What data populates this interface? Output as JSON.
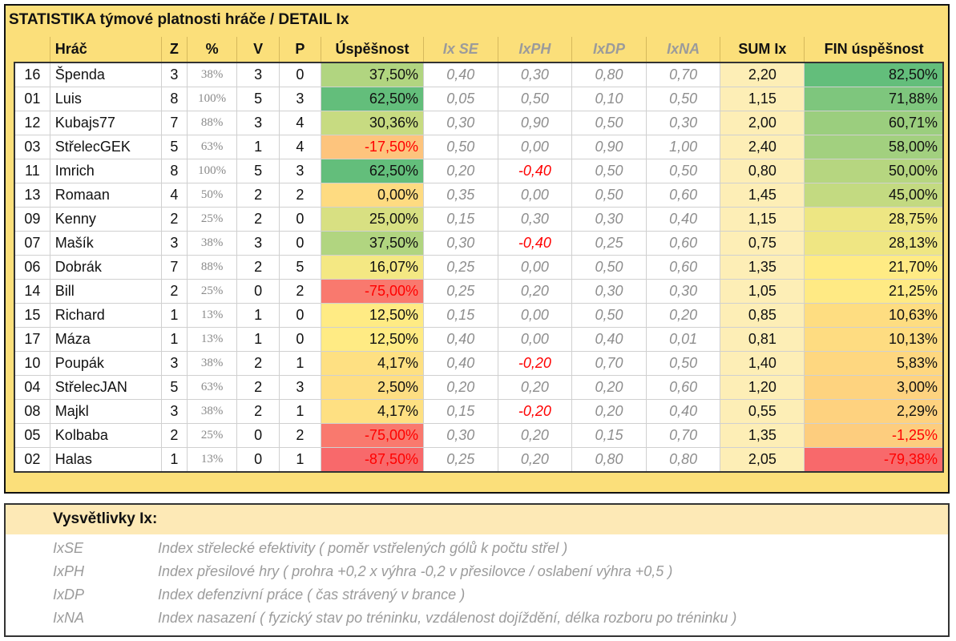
{
  "title": "STATISTIKA týmové platnosti hráče / DETAIL Ix",
  "columns": {
    "nr": "",
    "player": "Hráč",
    "z": "Z",
    "pct": "%",
    "v": "V",
    "p": "P",
    "success": "Úspěšnost",
    "ixse": "Ix SE",
    "ixph": "IxPH",
    "ixdp": "IxDP",
    "ixna": "IxNA",
    "sum": "SUM Ix",
    "fin": "FIN úspěšnost"
  },
  "rows": [
    {
      "nr": "16",
      "player": "Špenda",
      "z": "3",
      "pct": "38%",
      "v": "3",
      "p": "0",
      "success": "37,50%",
      "success_num": 37.5,
      "ixse": "0,40",
      "ixph": "0,30",
      "ixdp": "0,80",
      "ixna": "0,70",
      "sum": "2,20",
      "fin": "82,50%",
      "fin_num": 82.5
    },
    {
      "nr": "01",
      "player": "Luis",
      "z": "8",
      "pct": "100%",
      "v": "5",
      "p": "3",
      "success": "62,50%",
      "success_num": 62.5,
      "ixse": "0,05",
      "ixph": "0,50",
      "ixdp": "0,10",
      "ixna": "0,50",
      "sum": "1,15",
      "fin": "71,88%",
      "fin_num": 71.88
    },
    {
      "nr": "12",
      "player": "Kubajs77",
      "z": "7",
      "pct": "88%",
      "v": "3",
      "p": "4",
      "success": "30,36%",
      "success_num": 30.36,
      "ixse": "0,30",
      "ixph": "0,90",
      "ixdp": "0,50",
      "ixna": "0,30",
      "sum": "2,00",
      "fin": "60,71%",
      "fin_num": 60.71
    },
    {
      "nr": "03",
      "player": "StřelecGEK",
      "z": "5",
      "pct": "63%",
      "v": "1",
      "p": "4",
      "success": "-17,50%",
      "success_num": -17.5,
      "ixse": "0,50",
      "ixph": "0,00",
      "ixdp": "0,90",
      "ixna": "1,00",
      "sum": "2,40",
      "fin": "58,00%",
      "fin_num": 58.0
    },
    {
      "nr": "11",
      "player": "Imrich",
      "z": "8",
      "pct": "100%",
      "v": "5",
      "p": "3",
      "success": "62,50%",
      "success_num": 62.5,
      "ixse": "0,20",
      "ixph": "-0,40",
      "ixdp": "0,50",
      "ixna": "0,50",
      "sum": "0,80",
      "fin": "50,00%",
      "fin_num": 50.0
    },
    {
      "nr": "13",
      "player": "Romaan",
      "z": "4",
      "pct": "50%",
      "v": "2",
      "p": "2",
      "success": "0,00%",
      "success_num": 0.0,
      "ixse": "0,35",
      "ixph": "0,00",
      "ixdp": "0,50",
      "ixna": "0,60",
      "sum": "1,45",
      "fin": "45,00%",
      "fin_num": 45.0
    },
    {
      "nr": "09",
      "player": "Kenny",
      "z": "2",
      "pct": "25%",
      "v": "2",
      "p": "0",
      "success": "25,00%",
      "success_num": 25.0,
      "ixse": "0,15",
      "ixph": "0,30",
      "ixdp": "0,30",
      "ixna": "0,40",
      "sum": "1,15",
      "fin": "28,75%",
      "fin_num": 28.75
    },
    {
      "nr": "07",
      "player": "Mašík",
      "z": "3",
      "pct": "38%",
      "v": "3",
      "p": "0",
      "success": "37,50%",
      "success_num": 37.5,
      "ixse": "0,30",
      "ixph": "-0,40",
      "ixdp": "0,25",
      "ixna": "0,60",
      "sum": "0,75",
      "fin": "28,13%",
      "fin_num": 28.13
    },
    {
      "nr": "06",
      "player": "Dobrák",
      "z": "7",
      "pct": "88%",
      "v": "2",
      "p": "5",
      "success": "16,07%",
      "success_num": 16.07,
      "ixse": "0,25",
      "ixph": "0,00",
      "ixdp": "0,50",
      "ixna": "0,60",
      "sum": "1,35",
      "fin": "21,70%",
      "fin_num": 21.7
    },
    {
      "nr": "14",
      "player": "Bill",
      "z": "2",
      "pct": "25%",
      "v": "0",
      "p": "2",
      "success": "-75,00%",
      "success_num": -75.0,
      "ixse": "0,25",
      "ixph": "0,20",
      "ixdp": "0,30",
      "ixna": "0,30",
      "sum": "1,05",
      "fin": "21,25%",
      "fin_num": 21.25
    },
    {
      "nr": "15",
      "player": "Richard",
      "z": "1",
      "pct": "13%",
      "v": "1",
      "p": "0",
      "success": "12,50%",
      "success_num": 12.5,
      "ixse": "0,15",
      "ixph": "0,00",
      "ixdp": "0,50",
      "ixna": "0,20",
      "sum": "0,85",
      "fin": "10,63%",
      "fin_num": 10.63
    },
    {
      "nr": "17",
      "player": "Máza",
      "z": "1",
      "pct": "13%",
      "v": "1",
      "p": "0",
      "success": "12,50%",
      "success_num": 12.5,
      "ixse": "0,40",
      "ixph": "0,00",
      "ixdp": "0,40",
      "ixna": "0,01",
      "sum": "0,81",
      "fin": "10,13%",
      "fin_num": 10.13
    },
    {
      "nr": "10",
      "player": "Poupák",
      "z": "3",
      "pct": "38%",
      "v": "2",
      "p": "1",
      "success": "4,17%",
      "success_num": 4.17,
      "ixse": "0,40",
      "ixph": "-0,20",
      "ixdp": "0,70",
      "ixna": "0,50",
      "sum": "1,40",
      "fin": "5,83%",
      "fin_num": 5.83
    },
    {
      "nr": "04",
      "player": "StřelecJAN",
      "z": "5",
      "pct": "63%",
      "v": "2",
      "p": "3",
      "success": "2,50%",
      "success_num": 2.5,
      "ixse": "0,20",
      "ixph": "0,20",
      "ixdp": "0,20",
      "ixna": "0,60",
      "sum": "1,20",
      "fin": "3,00%",
      "fin_num": 3.0
    },
    {
      "nr": "08",
      "player": "Majkl",
      "z": "3",
      "pct": "38%",
      "v": "2",
      "p": "1",
      "success": "4,17%",
      "success_num": 4.17,
      "ixse": "0,15",
      "ixph": "-0,20",
      "ixdp": "0,20",
      "ixna": "0,40",
      "sum": "0,55",
      "fin": "2,29%",
      "fin_num": 2.29
    },
    {
      "nr": "05",
      "player": "Kolbaba",
      "z": "2",
      "pct": "25%",
      "v": "0",
      "p": "2",
      "success": "-75,00%",
      "success_num": -75.0,
      "ixse": "0,30",
      "ixph": "0,20",
      "ixdp": "0,15",
      "ixna": "0,70",
      "sum": "1,35",
      "fin": "-1,25%",
      "fin_num": -1.25
    },
    {
      "nr": "02",
      "player": "Halas",
      "z": "1",
      "pct": "13%",
      "v": "0",
      "p": "1",
      "success": "-87,50%",
      "success_num": -87.5,
      "ixse": "0,25",
      "ixph": "0,20",
      "ixdp": "0,80",
      "ixna": "0,80",
      "sum": "2,05",
      "fin": "-79,38%",
      "fin_num": -79.38
    }
  ],
  "colors": {
    "panel_bg": "#fbdf7a",
    "sum_bg": "#fdeeb6",
    "scale_good": "#63be7b",
    "scale_mid": "#ffeb84",
    "scale_bad": "#f8696b",
    "negative_text": "#ff0000",
    "ix_text": "#8e8e8e"
  },
  "legend": {
    "title": "Vysvětlivky Ix:",
    "items": [
      {
        "code": "IxSE",
        "desc": "Index střelecké efektivity ( poměr vstřelených gólů k počtu střel )"
      },
      {
        "code": "IxPH",
        "desc": "Index přesilové hry ( prohra +0,2 x výhra -0,2 v přesilovce / oslabení výhra +0,5 )"
      },
      {
        "code": "IxDP",
        "desc": "Index defenzivní práce ( čas strávený v brance )"
      },
      {
        "code": "IxNA",
        "desc": "Index nasazení ( fyzický stav po tréninku, vzdálenost dojíždění, délka rozboru po tréninku )"
      }
    ]
  }
}
